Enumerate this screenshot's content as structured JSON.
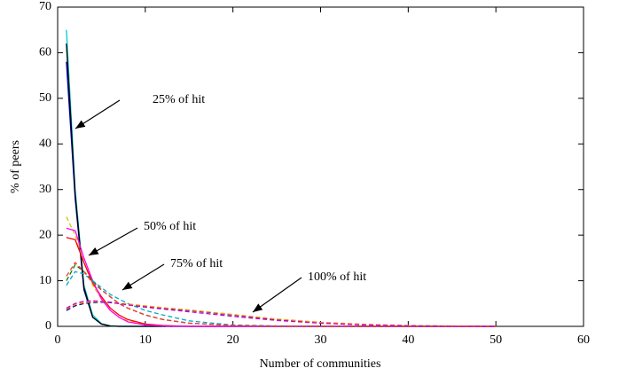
{
  "chart_data": {
    "type": "line",
    "xlabel": "Number of communities",
    "ylabel": "% of peers",
    "x": [
      1,
      2,
      3,
      4,
      5,
      6,
      7,
      8,
      10,
      12,
      15,
      20,
      25,
      30,
      35,
      40,
      45,
      50
    ],
    "series": [
      {
        "color": "#0000cc",
        "dashed": false,
        "values": [
          58,
          28,
          8,
          2,
          0.5,
          0.1,
          0,
          0,
          0,
          0,
          0,
          0,
          0,
          0,
          0,
          0,
          0,
          0
        ]
      },
      {
        "color": "#00cccc",
        "dashed": false,
        "values": [
          65,
          30,
          9,
          2.5,
          0.6,
          0.1,
          0,
          0,
          0,
          0,
          0,
          0,
          0,
          0,
          0,
          0,
          0,
          0
        ]
      },
      {
        "color": "#000000",
        "dashed": false,
        "values": [
          62,
          29,
          8.5,
          2,
          0.5,
          0.1,
          0,
          0,
          0,
          0,
          0,
          0,
          0,
          0,
          0,
          0,
          0,
          0
        ]
      },
      {
        "color": "#cccc00",
        "dashed": true,
        "values": [
          24,
          20,
          14,
          9,
          6,
          3.5,
          2,
          1.2,
          0.4,
          0.1,
          0,
          0,
          0,
          0,
          0,
          0,
          0,
          0
        ]
      },
      {
        "color": "#ff0000",
        "dashed": false,
        "values": [
          19.5,
          19,
          14,
          9.5,
          6.5,
          4,
          2.5,
          1.5,
          0.5,
          0.2,
          0,
          0,
          0,
          0,
          0,
          0,
          0,
          0
        ]
      },
      {
        "color": "#ff00ff",
        "dashed": false,
        "values": [
          21.5,
          21,
          15,
          10,
          6,
          3.5,
          2,
          1,
          0.3,
          0.1,
          0,
          0,
          0,
          0,
          0,
          0,
          0,
          0
        ]
      },
      {
        "color": "#008000",
        "dashed": true,
        "values": [
          10,
          13.5,
          12,
          10,
          8,
          6.5,
          5,
          4,
          2.5,
          1.5,
          0.7,
          0.2,
          0.05,
          0,
          0,
          0,
          0,
          0
        ]
      },
      {
        "color": "#00aacc",
        "dashed": true,
        "values": [
          9,
          12,
          11.5,
          10,
          8.5,
          7,
          6,
          5,
          3.5,
          2.5,
          1.2,
          0.3,
          0.1,
          0,
          0,
          0,
          0,
          0
        ]
      },
      {
        "color": "#ff3333",
        "dashed": true,
        "values": [
          11,
          14,
          12,
          9.5,
          8,
          6.5,
          5,
          4,
          2.5,
          1.5,
          0.7,
          0.2,
          0.05,
          0,
          0,
          0,
          0,
          0
        ]
      },
      {
        "color": "#0000aa",
        "dashed": true,
        "values": [
          3.5,
          4.5,
          5,
          5.2,
          5.3,
          5.2,
          5,
          4.8,
          4.4,
          4,
          3.5,
          2.5,
          1.5,
          0.8,
          0.4,
          0.15,
          0.05,
          0
        ]
      },
      {
        "color": "#ff9900",
        "dashed": true,
        "values": [
          3.8,
          4.8,
          5.2,
          5.4,
          5.4,
          5.3,
          5.1,
          4.9,
          4.5,
          4.1,
          3.6,
          2.6,
          1.6,
          0.9,
          0.45,
          0.2,
          0.08,
          0.02
        ]
      },
      {
        "color": "#cc00cc",
        "dashed": true,
        "values": [
          4,
          5,
          5.5,
          5.6,
          5.5,
          5.3,
          5,
          4.7,
          4.2,
          3.8,
          3.2,
          2.2,
          1.3,
          0.7,
          0.3,
          0.1,
          0,
          0
        ]
      }
    ],
    "annotations": [
      "25% of hit",
      "50% of hit",
      "75% of hit",
      "100% of hit"
    ],
    "xlim": [
      0,
      60
    ],
    "xticks": [
      0,
      10,
      20,
      30,
      40,
      50,
      60
    ],
    "ylim": [
      0,
      70
    ],
    "yticks": [
      0,
      10,
      20,
      30,
      40,
      50,
      60,
      70
    ]
  }
}
